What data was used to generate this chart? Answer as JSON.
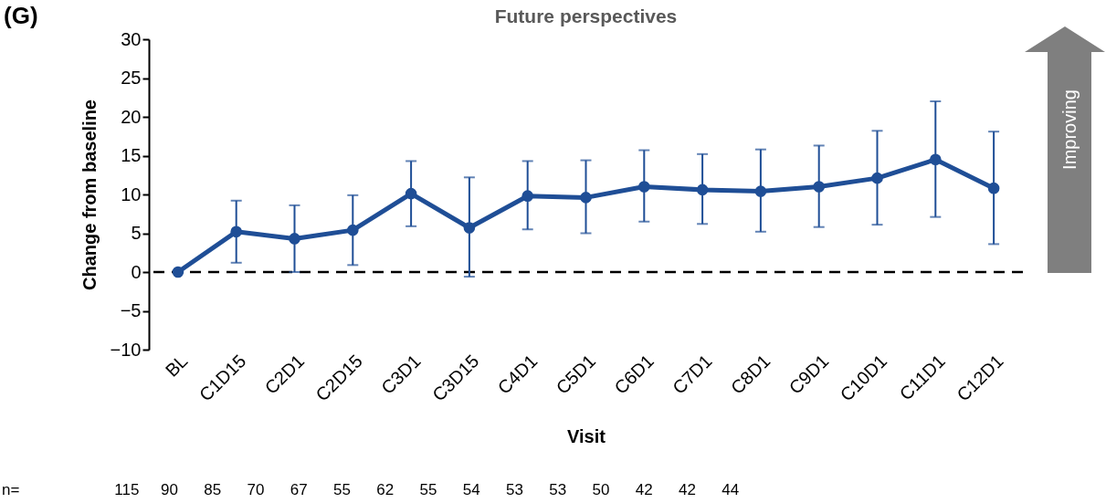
{
  "chart_data": {
    "type": "line",
    "title": "Future perspectives",
    "xlabel": "Visit",
    "ylabel": "Change from baseline",
    "categories": [
      "BL",
      "C1D15",
      "C2D1",
      "C2D15",
      "C3D1",
      "C3D15",
      "C4D1",
      "C5D1",
      "C6D1",
      "C7D1",
      "C8D1",
      "C9D1",
      "C10D1",
      "C11D1",
      "C12D1"
    ],
    "series": [
      {
        "color": "#1f4e96",
        "values": [
          0,
          5.2,
          4.3,
          5.4,
          10.1,
          5.7,
          9.8,
          9.6,
          11,
          10.6,
          10.4,
          11,
          12.1,
          14.5,
          10.8
        ],
        "errors": [
          null,
          [
            1.2,
            9.2
          ],
          [
            0,
            8.6
          ],
          [
            0.9,
            9.9
          ],
          [
            5.9,
            14.3
          ],
          [
            -0.6,
            12.2
          ],
          [
            5.5,
            14.3
          ],
          [
            5,
            14.4
          ],
          [
            6.5,
            15.7
          ],
          [
            6.2,
            15.2
          ],
          [
            5.2,
            15.8
          ],
          [
            5.8,
            16.3
          ],
          [
            6.1,
            18.2
          ],
          [
            7.1,
            22
          ],
          [
            3.6,
            18.1
          ]
        ]
      }
    ],
    "ylim": [
      -10,
      30
    ],
    "yticks": [
      -10,
      -5,
      0,
      5,
      10,
      15,
      20,
      25,
      30
    ],
    "grid": false,
    "marker": "circle",
    "line_style": "solid",
    "ref_lines": [
      {
        "axis": "y",
        "value": 0,
        "color": "#000000",
        "line_style": "dashed"
      }
    ],
    "annotations": [
      "(G)",
      "Improving",
      "n=                      115     90      85      70      67      55      62      55      54      53      53      50      42      42      44"
    ]
  }
}
